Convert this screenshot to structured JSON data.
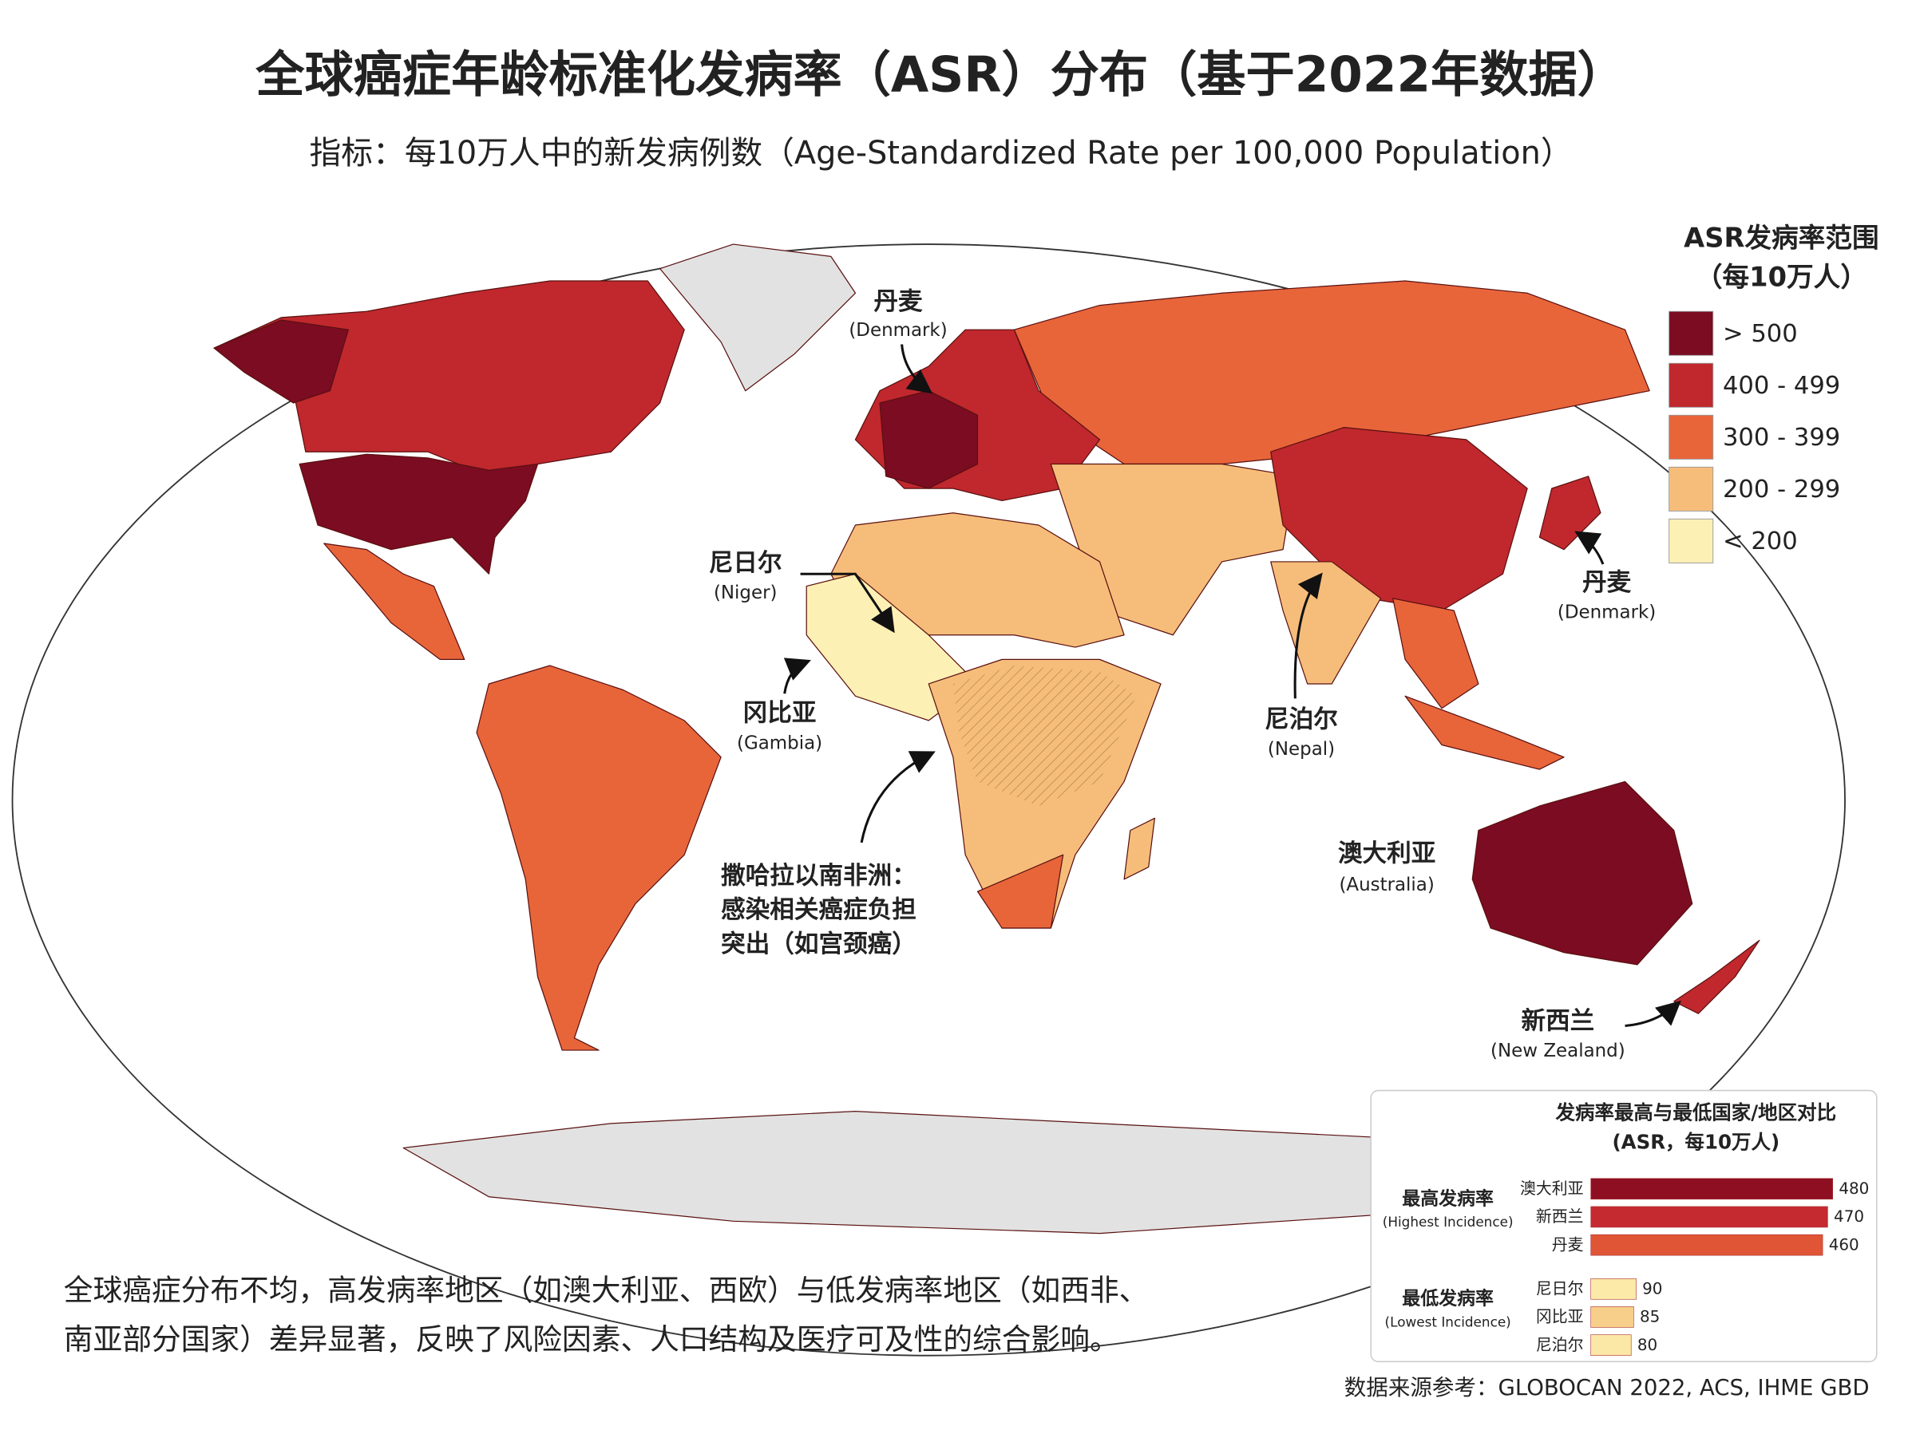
{
  "title": "全球癌症年龄标准化发病率（ASR）分布（基于2022年数据）",
  "subtitle": "指标：每10万人中的新发病例数（Age-Standardized Rate per 100,000 Population）",
  "legend": {
    "title": [
      "ASR发病率范围",
      "（每10万人）"
    ],
    "items": [
      {
        "label": "> 500",
        "color": "#7b0c22"
      },
      {
        "label": "400 - 499",
        "color": "#c0282d"
      },
      {
        "label": "300 - 399",
        "color": "#e8653a"
      },
      {
        "label": "200 - 299",
        "color": "#f6bd7a"
      },
      {
        "label": "< 200",
        "color": "#fdf0b4"
      }
    ]
  },
  "annotations": [
    {
      "label": "丹麦",
      "sublabel": "(Denmark)"
    },
    {
      "label": "丹麦",
      "sublabel": "(Denmark)"
    },
    {
      "label": "尼日尔",
      "sublabel": "(Niger)"
    },
    {
      "label": "冈比亚",
      "sublabel": "(Gambia)"
    },
    {
      "label": "尼泊尔",
      "sublabel": "(Nepal)"
    },
    {
      "label": "澳大利亚",
      "sublabel": "(Australia)"
    },
    {
      "label": "新西兰",
      "sublabel": "(New Zealand)"
    },
    {
      "lines": [
        "撒哈拉以南非洲：",
        "感染相关癌症负担",
        "突出（如宫颈癌）"
      ]
    }
  ],
  "inset_chart": {
    "type": "bar",
    "title": "发病率最高与最低国家/地区对比",
    "subtitle": "(ASR，每10万人)",
    "groups": [
      {
        "label": "最高发病率",
        "sublabel": "(Highest Incidence)",
        "categories": [
          "澳大利亚",
          "新西兰",
          "丹麦"
        ],
        "values": [
          480,
          470,
          460
        ],
        "colors": [
          "#8f0f22",
          "#c42a2f",
          "#e05535"
        ]
      },
      {
        "label": "最低发病率",
        "sublabel": "(Lowest Incidence)",
        "categories": [
          "尼日尔",
          "冈比亚",
          "尼泊尔"
        ],
        "values": [
          90,
          85,
          80
        ],
        "colors": [
          "#fbeaa8",
          "#f7cf8a",
          "#fbe7a6"
        ]
      }
    ]
  },
  "footnote": [
    "全球癌症分布不均，高发病率地区（如澳大利亚、西欧）与低发病率地区（如西非、",
    "南亚部分国家）差异显著，反映了风险因素、人口结构及医疗可及性的综合影响。"
  ],
  "source": "数据来源参考：GLOBOCAN 2022, ACS, IHME GBD"
}
